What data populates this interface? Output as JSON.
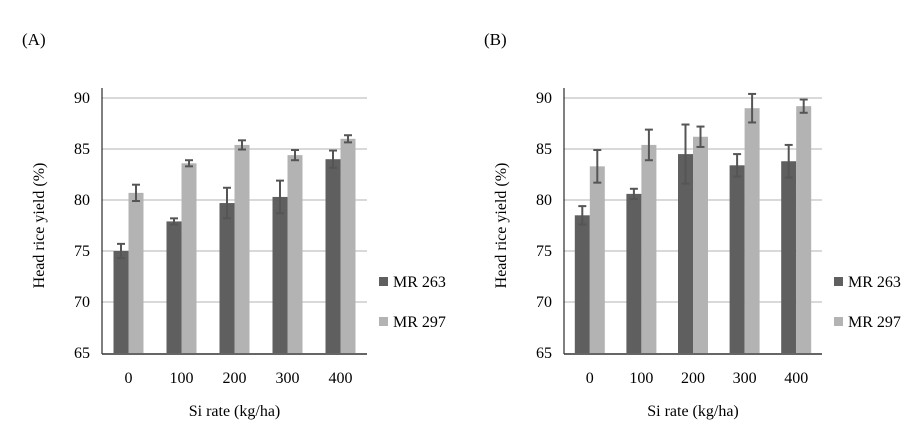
{
  "chart_data": [
    {
      "panel_label": "(A)",
      "type": "bar",
      "xlabel": "Si rate (kg/ha)",
      "ylabel": "Head rice yield (%)",
      "categories": [
        "0",
        "100",
        "200",
        "300",
        "400"
      ],
      "ylim": [
        65,
        90
      ],
      "yticks": [
        "65",
        "70",
        "75",
        "80",
        "85",
        "90"
      ],
      "grid": true,
      "legend_position": "right",
      "series": [
        {
          "name": "MR 263",
          "color": "#5f5f5f",
          "values": [
            75.0,
            77.9,
            79.7,
            80.3,
            84.0
          ],
          "errors": [
            0.7,
            0.3,
            1.5,
            1.6,
            0.85
          ]
        },
        {
          "name": "MR 297",
          "color": "#b3b3b3",
          "values": [
            80.7,
            83.6,
            85.4,
            84.4,
            86.0
          ],
          "errors": [
            0.8,
            0.3,
            0.45,
            0.5,
            0.35
          ]
        }
      ]
    },
    {
      "panel_label": "(B)",
      "type": "bar",
      "xlabel": "Si rate (kg/ha)",
      "ylabel": "Head rice yield (%)",
      "categories": [
        "0",
        "100",
        "200",
        "300",
        "400"
      ],
      "ylim": [
        65,
        90
      ],
      "yticks": [
        "65",
        "70",
        "75",
        "80",
        "85",
        "90"
      ],
      "grid": true,
      "legend_position": "right",
      "series": [
        {
          "name": "MR 263",
          "color": "#5f5f5f",
          "values": [
            78.5,
            80.6,
            84.5,
            83.4,
            83.8
          ],
          "errors": [
            0.9,
            0.5,
            2.9,
            1.1,
            1.6
          ]
        },
        {
          "name": "MR 297",
          "color": "#b3b3b3",
          "values": [
            83.3,
            85.4,
            86.2,
            89.0,
            89.2
          ],
          "errors": [
            1.6,
            1.5,
            1.0,
            1.4,
            0.65
          ]
        }
      ]
    }
  ]
}
